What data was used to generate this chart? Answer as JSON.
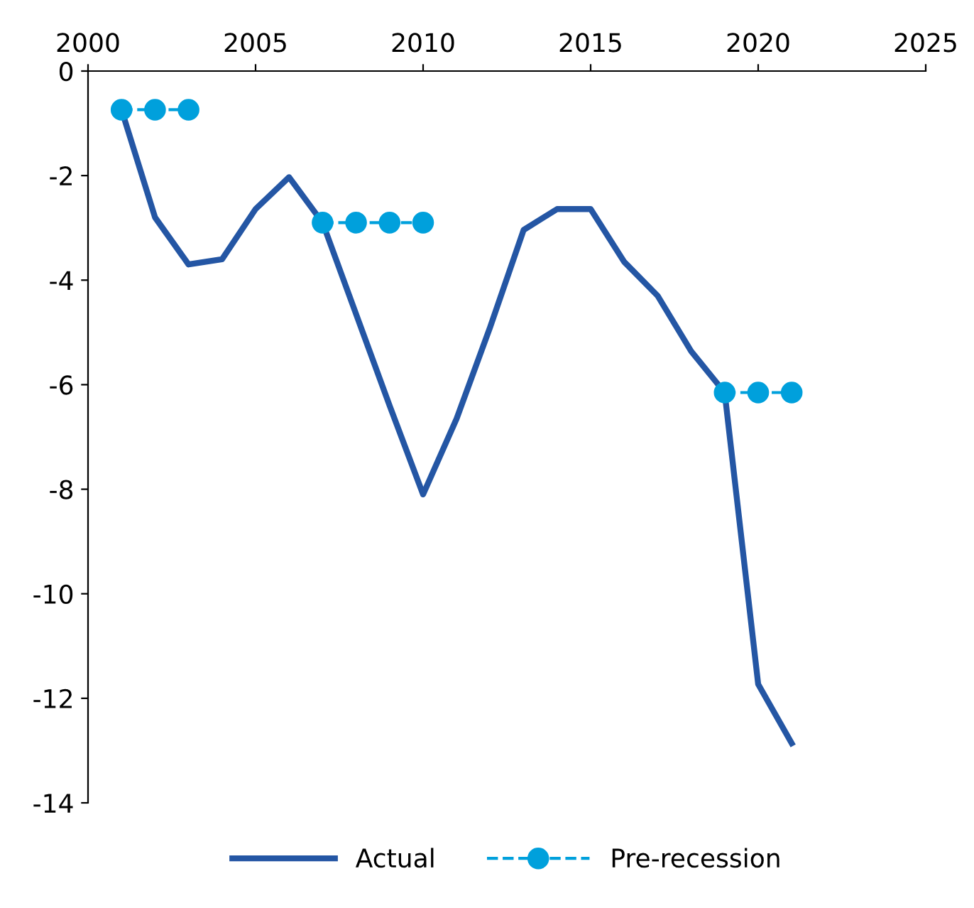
{
  "chart_data": {
    "type": "line",
    "x": [
      2001,
      2002,
      2003,
      2004,
      2005,
      2006,
      2007,
      2008,
      2009,
      2010,
      2011,
      2012,
      2013,
      2014,
      2015,
      2016,
      2017,
      2018,
      2019,
      2020,
      2021
    ],
    "series": [
      {
        "name": "Actual",
        "color": "#2456a4",
        "line_style": "solid",
        "marker": "none",
        "values": [
          -0.74,
          -2.8,
          -3.7,
          -3.6,
          -2.64,
          -2.03,
          -2.9,
          -4.65,
          -6.4,
          -8.1,
          -6.65,
          -4.9,
          -3.04,
          -2.64,
          -2.64,
          -3.65,
          -4.3,
          -5.36,
          -6.15,
          -11.73,
          -12.86
        ]
      },
      {
        "name": "Pre-recession",
        "color": "#00a0dc",
        "line_style": "dashed",
        "marker": "circle",
        "values": [
          -0.74,
          -0.74,
          -0.74,
          null,
          null,
          null,
          -2.9,
          -2.9,
          -2.9,
          -2.9,
          null,
          null,
          null,
          null,
          null,
          null,
          null,
          null,
          -6.15,
          -6.15,
          -6.15
        ]
      }
    ],
    "xlim": [
      2000,
      2025
    ],
    "xticks": [
      2000,
      2005,
      2010,
      2015,
      2020,
      2025
    ],
    "ylim": [
      -14,
      0
    ],
    "yticks": [
      -14,
      -12,
      -10,
      -8,
      -6,
      -4,
      -2,
      0
    ],
    "grid": false,
    "legend": "bottom"
  }
}
